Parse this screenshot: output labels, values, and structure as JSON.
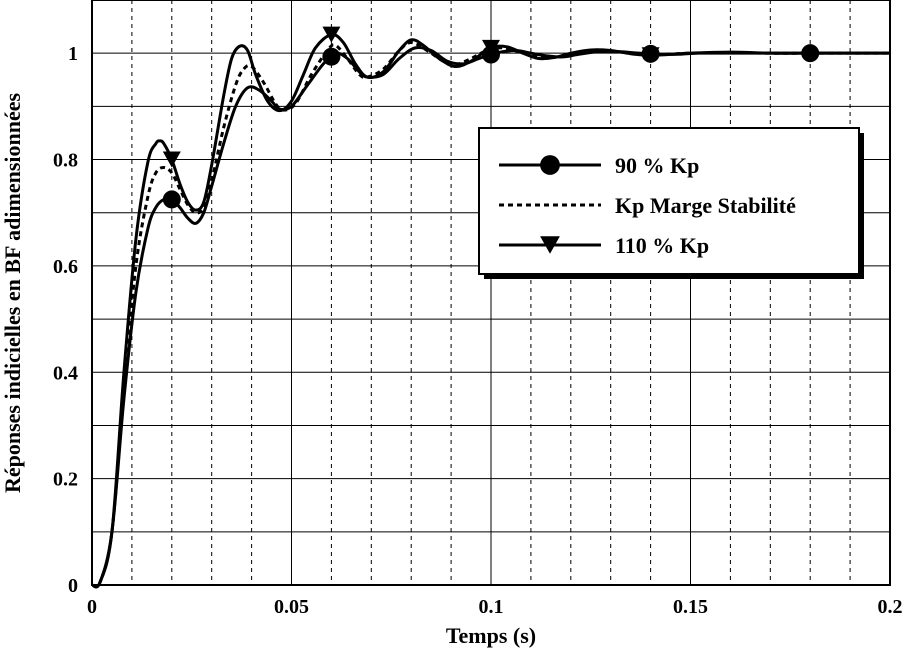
{
  "chart_data": {
    "type": "line",
    "title": "",
    "xlabel": "Temps (s)",
    "ylabel": "Réponses indicielles en BF adimensionnées",
    "xlim": [
      0,
      0.2
    ],
    "ylim": [
      0,
      1.1
    ],
    "xticks": [
      0,
      0.05,
      0.1,
      0.15,
      0.2
    ],
    "xtick_labels": [
      "0",
      "0.05",
      "0.1",
      "0.15",
      "0.2"
    ],
    "yticks": [
      0,
      0.2,
      0.4,
      0.6,
      0.8,
      1
    ],
    "ytick_labels": [
      "0",
      "0.2",
      "0.4",
      "0.6",
      "0.8",
      "1"
    ],
    "grid": {
      "major_x": "solid",
      "minor_x": "dashed",
      "minor_x_step": 0.01,
      "major_y": "solid",
      "y_step": 0.1
    },
    "legend_position": "right",
    "series": [
      {
        "name": "90 % Kp",
        "style": "solid",
        "marker": "circle",
        "color": "#000000",
        "marker_x": [
          0.02,
          0.06,
          0.1,
          0.14,
          0.18
        ],
        "x": [
          0,
          0.002,
          0.005,
          0.008,
          0.011,
          0.014,
          0.016,
          0.018,
          0.02,
          0.022,
          0.024,
          0.026,
          0.028,
          0.03,
          0.033,
          0.036,
          0.039,
          0.042,
          0.045,
          0.047,
          0.05,
          0.054,
          0.058,
          0.061,
          0.064,
          0.067,
          0.069,
          0.073,
          0.077,
          0.081,
          0.085,
          0.089,
          0.093,
          0.097,
          0.101,
          0.106,
          0.11,
          0.114,
          0.118,
          0.122,
          0.127,
          0.132,
          0.137,
          0.142,
          0.147,
          0.152,
          0.16,
          0.17,
          0.18,
          0.19,
          0.2
        ],
        "y": [
          0,
          0.005,
          0.1,
          0.35,
          0.55,
          0.67,
          0.71,
          0.725,
          0.725,
          0.71,
          0.69,
          0.68,
          0.7,
          0.75,
          0.83,
          0.9,
          0.935,
          0.93,
          0.91,
          0.895,
          0.9,
          0.94,
          0.98,
          1.0,
          0.99,
          0.965,
          0.955,
          0.96,
          0.99,
          1.01,
          1.005,
          0.985,
          0.98,
          0.99,
          1.0,
          1.005,
          1.0,
          0.995,
          0.993,
          0.998,
          1.003,
          1.003,
          1.0,
          0.998,
          0.998,
          1.0,
          1.0,
          1.0,
          1.0,
          1.0,
          1.0
        ]
      },
      {
        "name": "Kp Marge Stabilité",
        "style": "dashed",
        "marker": "none",
        "color": "#000000",
        "marker_x": [],
        "x": [
          0,
          0.002,
          0.005,
          0.008,
          0.011,
          0.014,
          0.016,
          0.018,
          0.02,
          0.022,
          0.024,
          0.026,
          0.028,
          0.03,
          0.033,
          0.036,
          0.038,
          0.04,
          0.043,
          0.046,
          0.048,
          0.051,
          0.055,
          0.059,
          0.061,
          0.064,
          0.067,
          0.069,
          0.073,
          0.077,
          0.08,
          0.084,
          0.088,
          0.091,
          0.095,
          0.099,
          0.103,
          0.108,
          0.112,
          0.116,
          0.12,
          0.125,
          0.13,
          0.135,
          0.14,
          0.15,
          0.16,
          0.17,
          0.18,
          0.19,
          0.2
        ],
        "y": [
          0,
          0.005,
          0.1,
          0.37,
          0.6,
          0.73,
          0.775,
          0.785,
          0.775,
          0.745,
          0.715,
          0.7,
          0.71,
          0.76,
          0.86,
          0.94,
          0.97,
          0.975,
          0.945,
          0.905,
          0.893,
          0.905,
          0.96,
          1.005,
          1.015,
          0.99,
          0.96,
          0.955,
          0.97,
          1.005,
          1.02,
          1.005,
          0.985,
          0.978,
          0.99,
          1.005,
          1.01,
          1.0,
          0.993,
          0.992,
          0.998,
          1.004,
          1.004,
          1.0,
          0.997,
          1.0,
          1.001,
          1.0,
          1.0,
          1.0,
          1.0
        ]
      },
      {
        "name": "110 % Kp",
        "style": "solid",
        "marker": "triangle-down",
        "color": "#000000",
        "marker_x": [
          0.02,
          0.06,
          0.1,
          0.14
        ],
        "x": [
          0,
          0.002,
          0.005,
          0.008,
          0.011,
          0.014,
          0.016,
          0.017,
          0.018,
          0.02,
          0.022,
          0.024,
          0.026,
          0.028,
          0.03,
          0.033,
          0.035,
          0.037,
          0.039,
          0.041,
          0.044,
          0.047,
          0.05,
          0.053,
          0.056,
          0.06,
          0.063,
          0.066,
          0.069,
          0.073,
          0.077,
          0.08,
          0.083,
          0.087,
          0.091,
          0.095,
          0.1,
          0.104,
          0.108,
          0.112,
          0.116,
          0.12,
          0.125,
          0.13,
          0.135,
          0.14,
          0.15,
          0.16,
          0.17,
          0.18,
          0.2
        ],
        "y": [
          0,
          0.005,
          0.1,
          0.4,
          0.65,
          0.795,
          0.83,
          0.835,
          0.83,
          0.8,
          0.755,
          0.72,
          0.705,
          0.72,
          0.79,
          0.92,
          0.99,
          1.013,
          1.005,
          0.96,
          0.91,
          0.892,
          0.91,
          0.96,
          1.01,
          1.035,
          1.02,
          0.98,
          0.955,
          0.965,
          1.005,
          1.025,
          1.015,
          0.99,
          0.975,
          0.985,
          1.01,
          1.012,
          1.0,
          0.99,
          0.992,
          1.0,
          1.006,
          1.005,
          0.999,
          0.996,
          1.0,
          1.002,
          1.0,
          1.0,
          1.0
        ]
      }
    ]
  }
}
